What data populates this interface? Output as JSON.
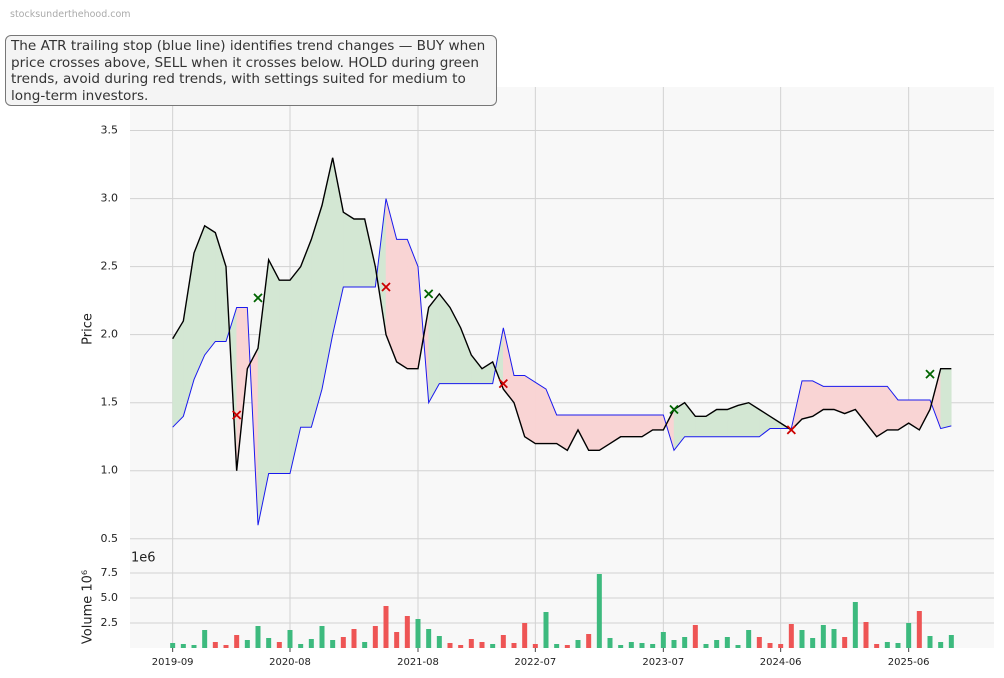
{
  "watermark": "stocksunderthehood.com",
  "chart_data": [
    {
      "type": "line",
      "annotation": "The ATR trailing stop (blue line) identifies trend changes — BUY when price crosses above, SELL when it crosses below. HOLD during green trends, avoid during red trends, with settings suited for medium to long-term investors.",
      "ylabel": "Price",
      "x": [
        "2019-09",
        "2019-10",
        "2019-11",
        "2019-12",
        "2020-01",
        "2020-02",
        "2020-03",
        "2020-04",
        "2020-05",
        "2020-06",
        "2020-07",
        "2020-08",
        "2020-09",
        "2020-10",
        "2020-11",
        "2020-12",
        "2021-01",
        "2021-02",
        "2021-03",
        "2021-04",
        "2021-05",
        "2021-06",
        "2021-07",
        "2021-08",
        "2021-09",
        "2021-10",
        "2021-11",
        "2021-12",
        "2022-01",
        "2022-02",
        "2022-03",
        "2022-04",
        "2022-05",
        "2022-06",
        "2022-07",
        "2022-08",
        "2022-09",
        "2022-10",
        "2022-11",
        "2022-12",
        "2023-01",
        "2023-02",
        "2023-03",
        "2023-04",
        "2023-05",
        "2023-06",
        "2023-07",
        "2023-08",
        "2023-09",
        "2023-10",
        "2023-11",
        "2023-12",
        "2024-01",
        "2024-02",
        "2024-03",
        "2024-04",
        "2024-05",
        "2024-06",
        "2024-07",
        "2024-08",
        "2024-09",
        "2024-10",
        "2024-11",
        "2024-12",
        "2025-01",
        "2025-02",
        "2025-03",
        "2025-04",
        "2025-05",
        "2025-06",
        "2025-07",
        "2025-08",
        "2025-09",
        "2025-10"
      ],
      "xlim": [
        "2019-05",
        "2026-02"
      ],
      "xticks": [
        "2019-09",
        "2020-08",
        "2021-08",
        "2022-07",
        "2023-07",
        "2024-06",
        "2025-06"
      ],
      "ylim": [
        0.3,
        3.82
      ],
      "yticks": [
        0.5,
        {
          "value": 1,
          "label": "1.0"
        },
        1.5,
        {
          "value": 2,
          "label": "2.0"
        },
        2.5,
        {
          "value": 3,
          "label": "3.0"
        },
        3.5
      ],
      "grid": true,
      "up_fill": "#d3e7d3",
      "down_fill": "#f9d4d4",
      "series": [
        {
          "color": "#000000",
          "values": [
            1.97,
            2.1,
            2.6,
            2.8,
            2.75,
            2.5,
            1.0,
            1.75,
            1.9,
            2.55,
            2.4,
            2.4,
            2.5,
            2.7,
            2.95,
            3.3,
            2.9,
            2.85,
            2.85,
            2.5,
            2.0,
            1.8,
            1.75,
            1.75,
            2.2,
            2.3,
            2.2,
            2.05,
            1.85,
            1.75,
            1.8,
            1.6,
            1.5,
            1.25,
            1.2,
            1.2,
            1.2,
            1.15,
            1.3,
            1.15,
            1.15,
            1.2,
            1.25,
            1.25,
            1.25,
            1.3,
            1.3,
            1.45,
            1.5,
            1.4,
            1.4,
            1.45,
            1.45,
            1.48,
            1.5,
            1.45,
            1.4,
            1.35,
            1.3,
            1.38,
            1.4,
            1.45,
            1.45,
            1.42,
            1.45,
            1.35,
            1.25,
            1.3,
            1.3,
            1.35,
            1.3,
            1.45,
            1.75,
            1.75
          ]
        },
        {
          "color": "#1a1aee",
          "values": [
            1.32,
            1.4,
            1.67,
            1.85,
            1.95,
            1.95,
            2.2,
            2.2,
            0.6,
            0.98,
            0.98,
            0.98,
            1.32,
            1.32,
            1.6,
            2.0,
            2.35,
            2.35,
            2.35,
            2.35,
            3.0,
            2.7,
            2.7,
            2.5,
            1.5,
            1.64,
            1.64,
            1.64,
            1.64,
            1.64,
            1.64,
            2.05,
            1.7,
            1.7,
            1.65,
            1.6,
            1.41,
            1.41,
            1.41,
            1.41,
            1.41,
            1.41,
            1.41,
            1.41,
            1.41,
            1.41,
            1.41,
            1.15,
            1.25,
            1.25,
            1.25,
            1.25,
            1.25,
            1.25,
            1.25,
            1.25,
            1.31,
            1.31,
            1.31,
            1.66,
            1.66,
            1.62,
            1.62,
            1.62,
            1.62,
            1.62,
            1.62,
            1.62,
            1.52,
            1.52,
            1.52,
            1.52,
            1.31,
            1.33
          ]
        }
      ],
      "buy_signals": {
        "color": "#006400",
        "x": [
          "2020-05",
          "2021-09",
          "2023-08",
          "2025-08"
        ],
        "values": [
          2.27,
          2.3,
          1.45,
          1.71
        ]
      },
      "sell_signals": {
        "color": "#cc0000",
        "x": [
          "2020-03",
          "2021-05",
          "2022-04",
          "2024-07"
        ],
        "values": [
          1.41,
          2.35,
          1.64,
          1.3
        ]
      }
    },
    {
      "type": "bar",
      "ylabel": "Volume  10⁶",
      "offset_label": "1e6",
      "ylim": [
        0,
        8.2
      ],
      "yticks": [
        2.5,
        {
          "value": 5,
          "label": "5.0"
        },
        7.5
      ],
      "grid": true,
      "up_color": "#3dba7e",
      "down_color": "#ee5555",
      "values": [
        0.5,
        0.4,
        0.3,
        1.8,
        0.6,
        0.3,
        1.3,
        0.8,
        2.2,
        1.0,
        0.6,
        1.8,
        0.4,
        0.9,
        2.2,
        0.8,
        1.1,
        1.9,
        0.6,
        2.2,
        4.2,
        1.6,
        3.2,
        2.9,
        1.9,
        1.2,
        0.5,
        0.3,
        0.9,
        0.6,
        0.4,
        1.3,
        0.5,
        2.5,
        0.4,
        3.6,
        0.4,
        0.3,
        0.8,
        1.4,
        7.4,
        1.0,
        0.3,
        0.6,
        0.5,
        0.4,
        1.6,
        0.8,
        1.1,
        2.3,
        0.4,
        0.8,
        1.1,
        0.3,
        1.8,
        1.1,
        0.5,
        0.4,
        2.4,
        1.8,
        1.0,
        2.3,
        1.9,
        1.1,
        4.6,
        2.6,
        0.4,
        0.6,
        0.5,
        2.5,
        3.7,
        1.2,
        0.6,
        1.3
      ]
    }
  ]
}
